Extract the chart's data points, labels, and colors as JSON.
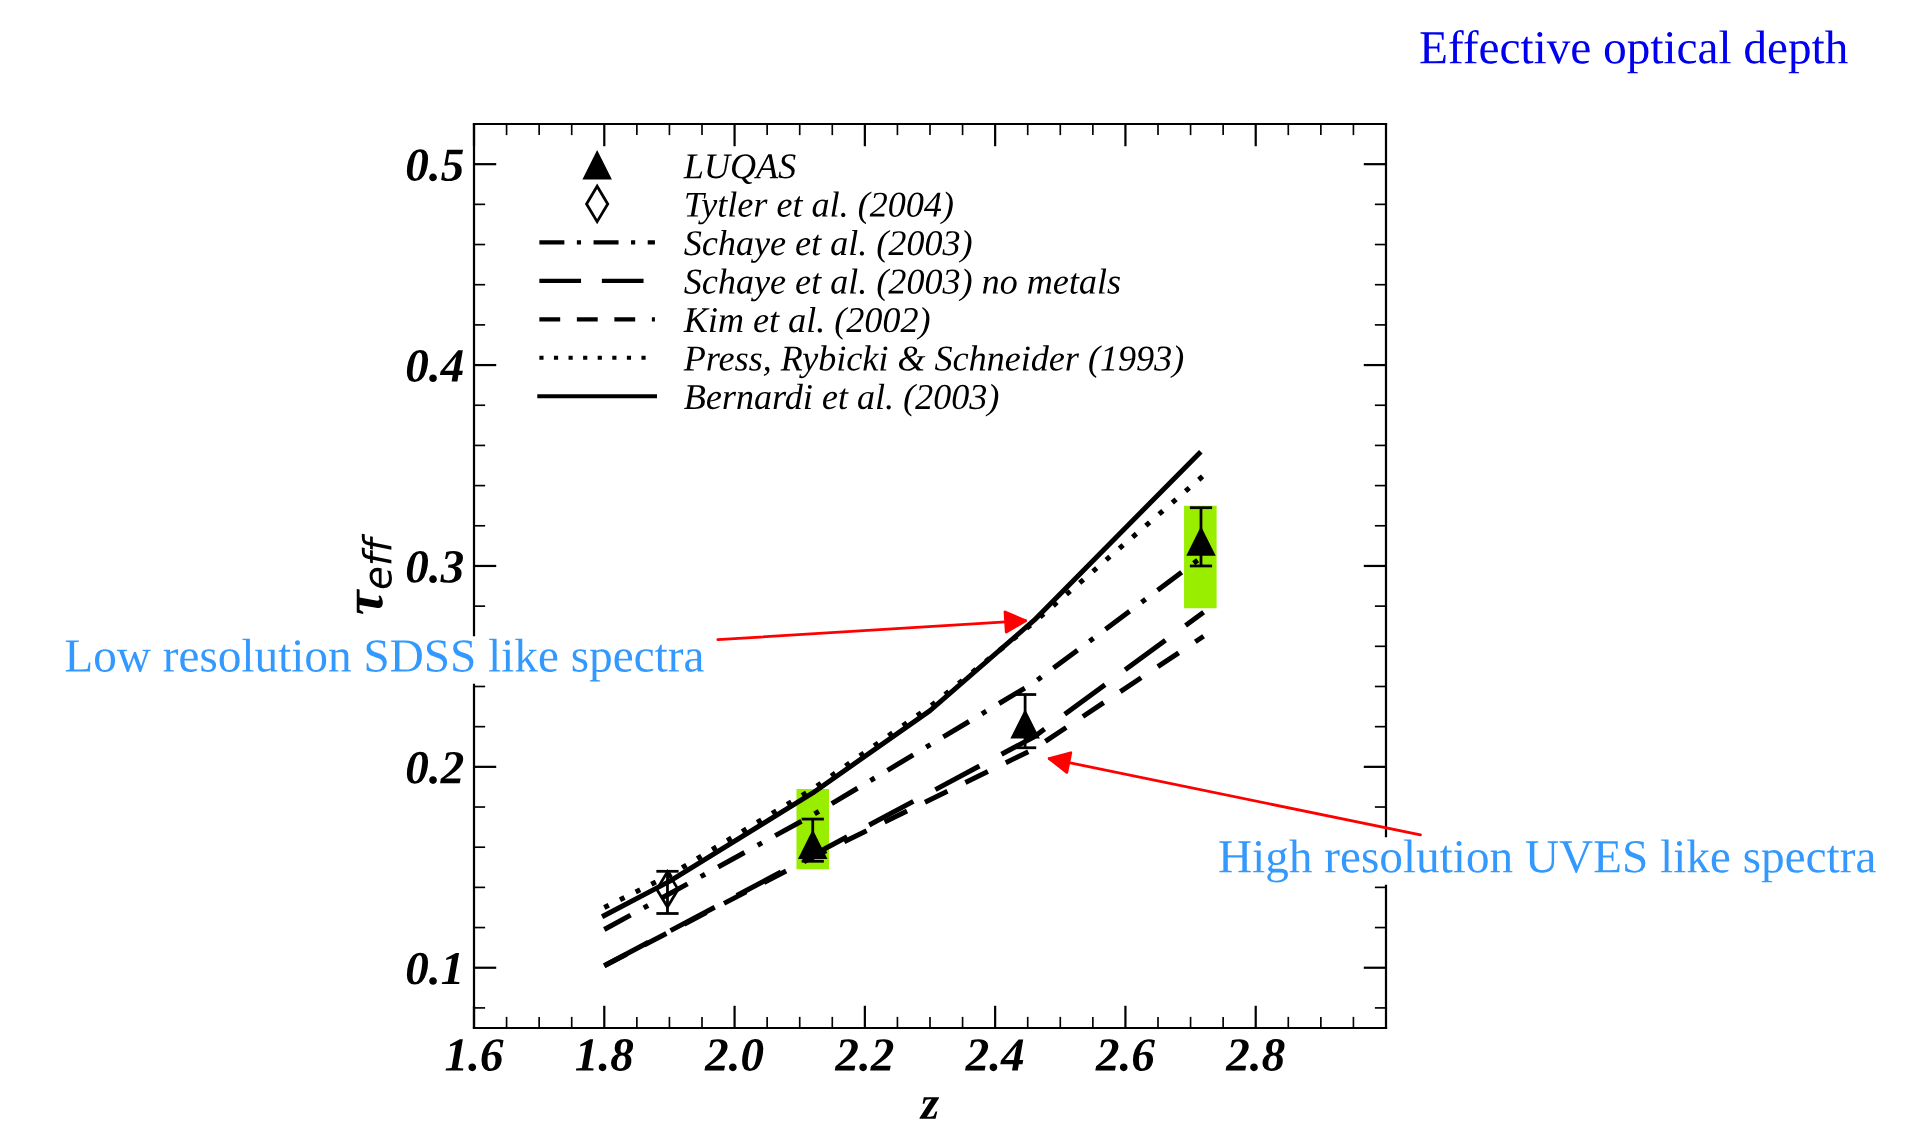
{
  "chart_data": {
    "type": "line",
    "title": "Effective optical depth",
    "xlabel": "z",
    "ylabel": "τ$_{eff}$",
    "xlim": [
      1.6,
      3.0
    ],
    "ylim": [
      0.07,
      0.52
    ],
    "xticks": [
      1.6,
      1.8,
      {
        "value": 2.0,
        "label": "2.0"
      },
      2.2,
      2.4,
      2.6,
      2.8
    ],
    "yticks": [
      0.1,
      0.2,
      0.3,
      0.4,
      0.5
    ],
    "grid": false,
    "legend": "top left",
    "series": [
      {
        "name": null,
        "type": "bar",
        "color": "#99ee00",
        "x": [
          2.12,
          2.715
        ],
        "base": [
          0.149,
          0.279
        ],
        "values": [
          0.04,
          0.051
        ]
      },
      {
        "name": "LUQAS",
        "type": "scatter",
        "marker": "triangle",
        "color": "#000000",
        "x": [
          2.12,
          2.446,
          2.716
        ],
        "values": [
          0.161,
          0.221,
          0.312
        ],
        "errors": [
          [
            0.153,
            0.174
          ],
          [
            0.2095,
            0.236
          ],
          [
            0.3,
            0.329
          ]
        ]
      },
      {
        "name": "Tytler et al. (2004)",
        "type": "scatter",
        "marker": "diamond",
        "color": "#000000",
        "x": [
          1.897
        ],
        "values": [
          0.139
        ],
        "errors": [
          [
            0.127,
            0.148
          ]
        ]
      },
      {
        "name": "Schaye et al. (2003)",
        "line_style": "dashdot",
        "color": "#000000",
        "x": [
          1.8,
          2.12,
          2.46,
          2.72
        ],
        "values": [
          0.119,
          0.176,
          0.242,
          0.305
        ]
      },
      {
        "name": "Schaye et al. (2003) no metals",
        "line_style": "longdash",
        "color": "#000000",
        "x": [
          1.8,
          2.12,
          2.46,
          2.72
        ],
        "values": [
          0.101,
          0.156,
          0.215,
          0.277
        ]
      },
      {
        "name": "Kim et al. (2002)",
        "line_style": "dashed",
        "color": "#000000",
        "x": [
          1.8,
          2.12,
          2.46,
          2.72
        ],
        "values": [
          0.101,
          0.155,
          0.209,
          0.265
        ]
      },
      {
        "name": "Press, Rybicki & Schneider (1993)",
        "line_style": "dotted",
        "color": "#000000",
        "x": [
          1.8,
          1.9,
          2.12,
          2.3,
          2.46,
          2.72
        ],
        "values": [
          0.13,
          0.146,
          0.189,
          0.23,
          0.272,
          0.345
        ]
      },
      {
        "name": "Bernardi et al. (2003)",
        "line_style": "solid",
        "color": "#000000",
        "x": [
          1.8,
          1.9,
          2.12,
          2.3,
          2.46,
          2.713
        ],
        "values": [
          0.126,
          0.143,
          0.187,
          0.228,
          0.273,
          0.356
        ]
      }
    ],
    "annotations": [
      {
        "text": "Low resolution SDSS like spectra",
        "x": 2.46,
        "y": 0.273
      },
      {
        "text": "High resolution UVES like spectra",
        "x": 2.47,
        "y": 0.205
      }
    ]
  }
}
